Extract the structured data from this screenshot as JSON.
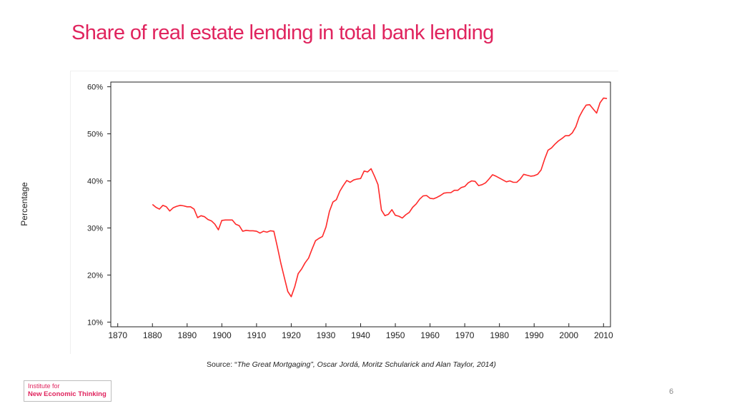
{
  "slide": {
    "title": "Share of real estate lending in total bank lending",
    "source_prefix": "Source: “",
    "source_italic": "The Great Mortgaging”, Oscar Jordá, Moritz Schularick and Alan Taylor, 2014)",
    "logo_line1": "Institute for",
    "logo_line2": "New Economic Thinking",
    "page_number": "6"
  },
  "chart_data": {
    "type": "line",
    "title": "",
    "xlabel": "",
    "ylabel": "Percentage",
    "xlim": [
      1868,
      2012
    ],
    "ylim": [
      9,
      61
    ],
    "x_ticks": [
      1870,
      1880,
      1890,
      1900,
      1910,
      1920,
      1930,
      1940,
      1950,
      1960,
      1970,
      1980,
      1990,
      2000,
      2010
    ],
    "y_ticks": [
      10,
      20,
      30,
      40,
      50,
      60
    ],
    "y_tick_labels": [
      "10%",
      "20%",
      "30%",
      "40%",
      "50%",
      "60%"
    ],
    "grid": false,
    "series": [
      {
        "color": "#ff2a2a",
        "points": [
          [
            1880,
            35.0
          ],
          [
            1881,
            34.4
          ],
          [
            1882,
            34.0
          ],
          [
            1883,
            34.8
          ],
          [
            1884,
            34.5
          ],
          [
            1885,
            33.6
          ],
          [
            1886,
            34.3
          ],
          [
            1887,
            34.6
          ],
          [
            1888,
            34.8
          ],
          [
            1889,
            34.7
          ],
          [
            1890,
            34.5
          ],
          [
            1891,
            34.5
          ],
          [
            1892,
            34.0
          ],
          [
            1893,
            32.2
          ],
          [
            1894,
            32.6
          ],
          [
            1895,
            32.4
          ],
          [
            1896,
            31.8
          ],
          [
            1897,
            31.5
          ],
          [
            1898,
            30.8
          ],
          [
            1899,
            29.6
          ],
          [
            1900,
            31.6
          ],
          [
            1901,
            31.7
          ],
          [
            1902,
            31.7
          ],
          [
            1903,
            31.7
          ],
          [
            1904,
            30.8
          ],
          [
            1905,
            30.5
          ],
          [
            1906,
            29.3
          ],
          [
            1907,
            29.5
          ],
          [
            1908,
            29.4
          ],
          [
            1909,
            29.4
          ],
          [
            1910,
            29.3
          ],
          [
            1911,
            28.9
          ],
          [
            1912,
            29.3
          ],
          [
            1913,
            29.1
          ],
          [
            1914,
            29.4
          ],
          [
            1915,
            29.3
          ],
          [
            1916,
            26.0
          ],
          [
            1917,
            22.5
          ],
          [
            1918,
            19.5
          ],
          [
            1919,
            16.5
          ],
          [
            1920,
            15.4
          ],
          [
            1921,
            17.5
          ],
          [
            1922,
            20.3
          ],
          [
            1923,
            21.3
          ],
          [
            1924,
            22.6
          ],
          [
            1925,
            23.6
          ],
          [
            1926,
            25.5
          ],
          [
            1927,
            27.3
          ],
          [
            1928,
            27.8
          ],
          [
            1929,
            28.2
          ],
          [
            1930,
            30.2
          ],
          [
            1931,
            33.5
          ],
          [
            1932,
            35.5
          ],
          [
            1933,
            36.0
          ],
          [
            1934,
            37.8
          ],
          [
            1935,
            39.0
          ],
          [
            1936,
            40.1
          ],
          [
            1937,
            39.7
          ],
          [
            1938,
            40.2
          ],
          [
            1939,
            40.4
          ],
          [
            1940,
            40.5
          ],
          [
            1941,
            42.1
          ],
          [
            1942,
            41.9
          ],
          [
            1943,
            42.6
          ],
          [
            1944,
            41.0
          ],
          [
            1945,
            39.2
          ],
          [
            1946,
            33.8
          ],
          [
            1947,
            32.6
          ],
          [
            1948,
            32.9
          ],
          [
            1949,
            33.9
          ],
          [
            1950,
            32.7
          ],
          [
            1951,
            32.5
          ],
          [
            1952,
            32.1
          ],
          [
            1953,
            32.8
          ],
          [
            1954,
            33.3
          ],
          [
            1955,
            34.4
          ],
          [
            1956,
            35.1
          ],
          [
            1957,
            36.1
          ],
          [
            1958,
            36.8
          ],
          [
            1959,
            36.9
          ],
          [
            1960,
            36.3
          ],
          [
            1961,
            36.2
          ],
          [
            1962,
            36.5
          ],
          [
            1963,
            36.9
          ],
          [
            1964,
            37.4
          ],
          [
            1965,
            37.5
          ],
          [
            1966,
            37.5
          ],
          [
            1967,
            38.0
          ],
          [
            1968,
            38.0
          ],
          [
            1969,
            38.6
          ],
          [
            1970,
            38.8
          ],
          [
            1971,
            39.6
          ],
          [
            1972,
            40.0
          ],
          [
            1973,
            39.9
          ],
          [
            1974,
            39.0
          ],
          [
            1975,
            39.2
          ],
          [
            1976,
            39.6
          ],
          [
            1977,
            40.4
          ],
          [
            1978,
            41.3
          ],
          [
            1979,
            41.0
          ],
          [
            1980,
            40.6
          ],
          [
            1981,
            40.2
          ],
          [
            1982,
            39.8
          ],
          [
            1983,
            40.0
          ],
          [
            1984,
            39.7
          ],
          [
            1985,
            39.7
          ],
          [
            1986,
            40.4
          ],
          [
            1987,
            41.4
          ],
          [
            1988,
            41.2
          ],
          [
            1989,
            41.0
          ],
          [
            1990,
            41.1
          ],
          [
            1991,
            41.4
          ],
          [
            1992,
            42.3
          ],
          [
            1993,
            44.6
          ],
          [
            1994,
            46.5
          ],
          [
            1995,
            47.0
          ],
          [
            1996,
            47.8
          ],
          [
            1997,
            48.5
          ],
          [
            1998,
            49.0
          ],
          [
            1999,
            49.6
          ],
          [
            2000,
            49.6
          ],
          [
            2001,
            50.2
          ],
          [
            2002,
            51.5
          ],
          [
            2003,
            53.6
          ],
          [
            2004,
            55.0
          ],
          [
            2005,
            56.1
          ],
          [
            2006,
            56.2
          ],
          [
            2007,
            55.3
          ],
          [
            2008,
            54.4
          ],
          [
            2009,
            56.6
          ],
          [
            2010,
            57.6
          ],
          [
            2011,
            57.5
          ]
        ]
      }
    ]
  }
}
